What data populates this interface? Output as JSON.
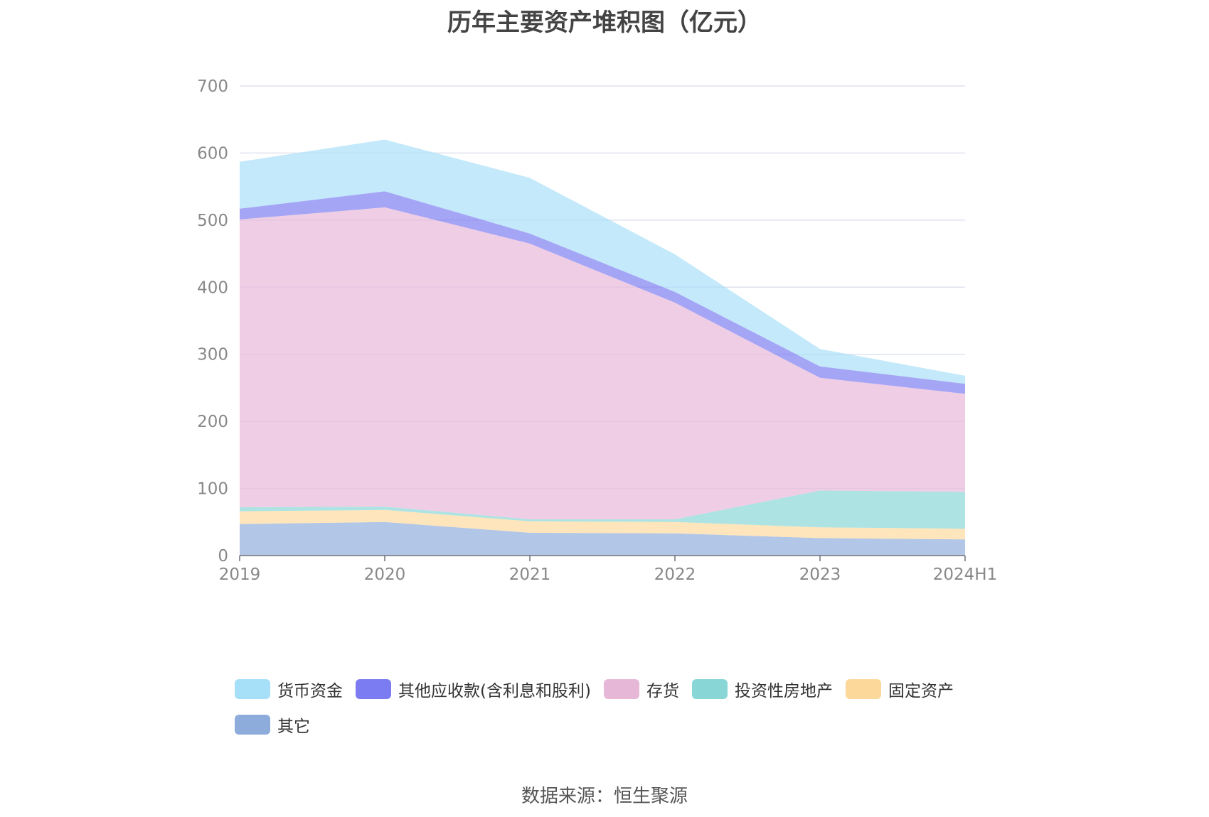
{
  "chart_data": {
    "type": "area",
    "stacked": true,
    "title": "历年主要资产堆积图（亿元）",
    "categories": [
      "2019",
      "2020",
      "2021",
      "2022",
      "2023",
      "2024H1"
    ],
    "ylim": [
      0,
      700
    ],
    "yticks": [
      0,
      100,
      200,
      300,
      400,
      500,
      600,
      700
    ],
    "grid": true,
    "legend_position": "bottom",
    "series": [
      {
        "name": "其它",
        "color": "#8eacdb",
        "values": [
          47,
          50,
          34,
          33,
          26,
          24
        ]
      },
      {
        "name": "固定资产",
        "color": "#fdd89b",
        "values": [
          19,
          18,
          17,
          17,
          16,
          16
        ]
      },
      {
        "name": "投资性房地产",
        "color": "#88d6d6",
        "values": [
          6,
          5,
          3,
          4,
          55,
          55
        ]
      },
      {
        "name": "存货",
        "color": "#e7b7d8",
        "values": [
          429,
          446,
          411,
          323,
          168,
          146
        ]
      },
      {
        "name": "其他应收款(含利息和股利)",
        "color": "#7b7bf2",
        "values": [
          16,
          24,
          15,
          16,
          17,
          15
        ]
      },
      {
        "name": "货币资金",
        "color": "#a6dff8",
        "values": [
          70,
          77,
          83,
          56,
          26,
          12
        ]
      }
    ],
    "legend_order": [
      "货币资金",
      "其他应收款(含利息和股利)",
      "存货",
      "投资性房地产",
      "固定资产",
      "其它"
    ]
  },
  "source": "数据来源：恒生聚源"
}
